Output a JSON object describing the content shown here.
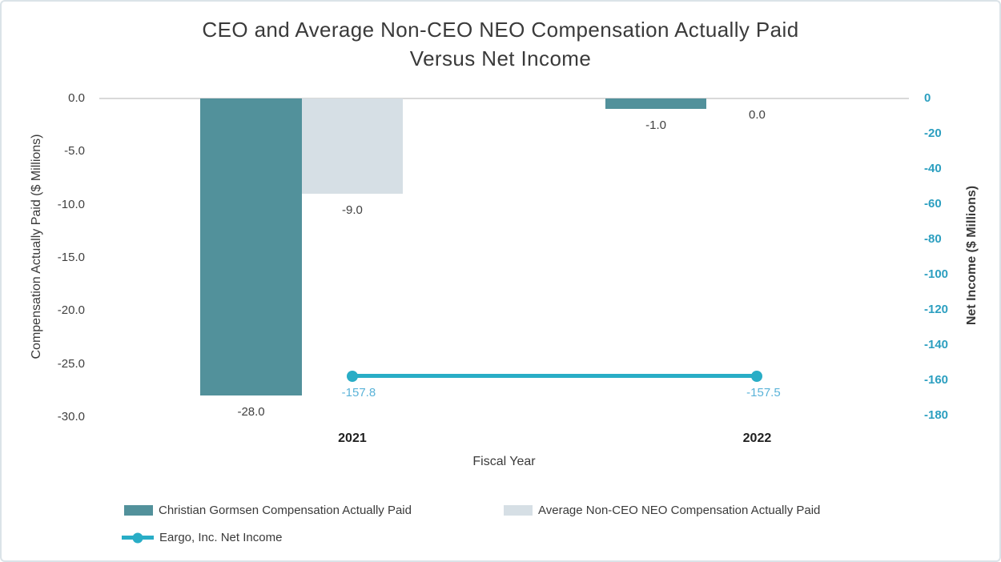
{
  "title": {
    "line1": "CEO and Average Non-CEO NEO Compensation Actually Paid",
    "line2": "Versus Net Income"
  },
  "chart_data": {
    "type": "bar",
    "title": "CEO and Average Non-CEO NEO Compensation Actually Paid Versus Net Income",
    "categories": [
      "2021",
      "2022"
    ],
    "series": [
      {
        "name": "Christian Gormsen Compensation Actually Paid",
        "kind": "bar",
        "axis": "left",
        "color": "#52919b",
        "values": [
          -28.0,
          -1.0
        ],
        "labels": [
          "-28.0",
          "-1.0"
        ],
        "label_color": "#404040"
      },
      {
        "name": "Average Non-CEO NEO Compensation Actually Paid",
        "kind": "bar",
        "axis": "left",
        "color": "#d6dfe5",
        "values": [
          -9.0,
          0.0
        ],
        "labels": [
          "-9.0",
          "0.0"
        ],
        "label_color": "#404040"
      },
      {
        "name": "Eargo, Inc. Net Income",
        "kind": "line",
        "axis": "right",
        "color": "#29adc6",
        "values": [
          -157.8,
          -157.5
        ],
        "labels": [
          "-157.8",
          "-157.5"
        ],
        "label_color": "#5ab3d8"
      }
    ],
    "xlabel": "Fiscal Year",
    "left_axis": {
      "label": "Compensation Actually Paid ($ Millions)",
      "ticks": [
        "0.0",
        "-5.0",
        "-10.0",
        "-15.0",
        "-20.0",
        "-25.0",
        "-30.0"
      ],
      "range": [
        0,
        -30
      ],
      "text_color": "#404040"
    },
    "right_axis": {
      "label": "Net Income ($ Millions)",
      "ticks": [
        "0",
        "-20",
        "-40",
        "-60",
        "-80",
        "-100",
        "-120",
        "-140",
        "-160",
        "-180"
      ],
      "range": [
        0,
        -180
      ],
      "text_color": "#2c9fc0"
    },
    "grid": "zero-line-only",
    "legend_position": "bottom"
  },
  "colors": {
    "zero_line": "#d9d9d9",
    "canvas_border": "#dbe3e8",
    "title_text": "#3a3a3a"
  }
}
